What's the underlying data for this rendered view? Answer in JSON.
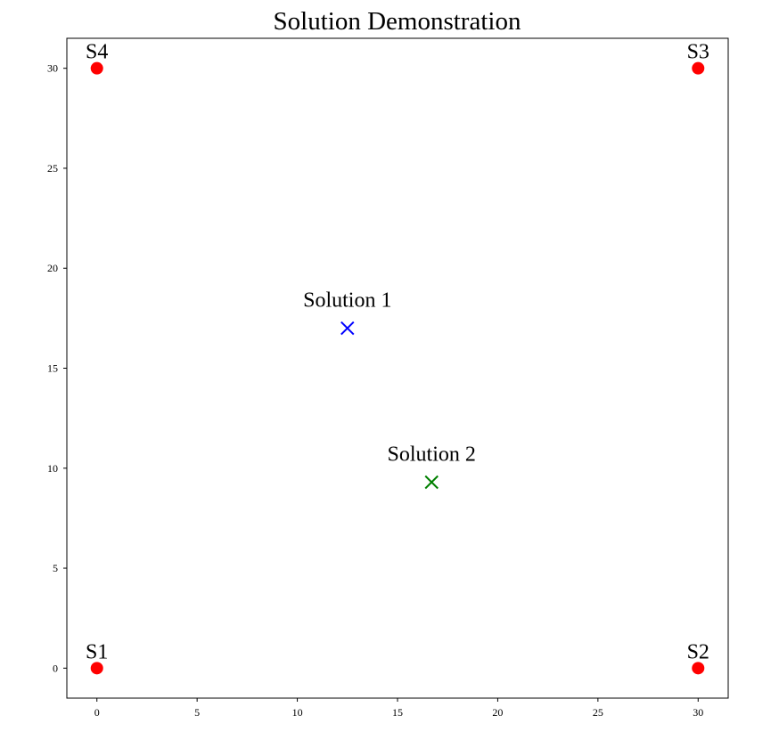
{
  "chart_data": {
    "type": "scatter",
    "title": "Solution Demonstration",
    "xlabel": "",
    "ylabel": "",
    "xlim": [
      -1.5,
      31.5
    ],
    "ylim": [
      -1.5,
      31.5
    ],
    "xticks": [
      0,
      5,
      10,
      15,
      20,
      25,
      30
    ],
    "yticks": [
      0,
      5,
      10,
      15,
      20,
      25,
      30
    ],
    "grid": false,
    "legend": false,
    "series": [
      {
        "marker": "circle",
        "color": "#ff0000",
        "points": [
          {
            "label": "S1",
            "x": 0,
            "y": 0
          },
          {
            "label": "S2",
            "x": 30,
            "y": 0
          },
          {
            "label": "S3",
            "x": 30,
            "y": 30
          },
          {
            "label": "S4",
            "x": 0,
            "y": 30
          }
        ]
      },
      {
        "marker": "x",
        "color": "#0000ff",
        "points": [
          {
            "label": "Solution 1",
            "x": 12.5,
            "y": 17
          }
        ]
      },
      {
        "marker": "x",
        "color": "#008000",
        "points": [
          {
            "label": "Solution 2",
            "x": 16.7,
            "y": 9.3
          }
        ]
      }
    ]
  }
}
